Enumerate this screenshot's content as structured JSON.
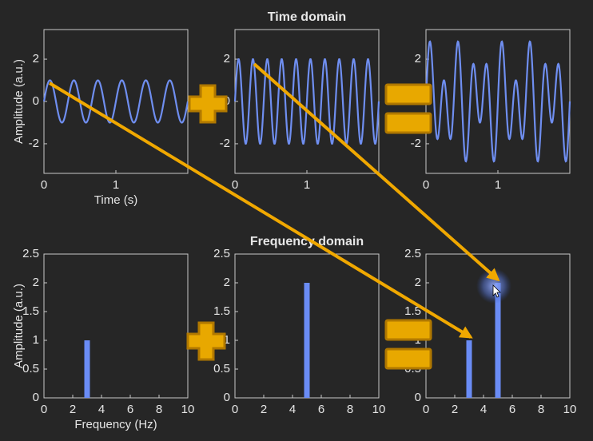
{
  "chart_data": [
    {
      "type": "sine",
      "ylabel": "Amplitude (a.u.)",
      "xlabel": "Time (s)",
      "components": [
        {
          "amplitude": 1,
          "frequency": 3
        }
      ],
      "color": "#6f8ef0",
      "xlim": [
        0,
        2
      ],
      "xticks": [
        0,
        1
      ],
      "ylim": [
        -3.4,
        3.4
      ],
      "yticks": [
        -2,
        0,
        2
      ]
    },
    {
      "type": "sine",
      "title": "Time domain",
      "components": [
        {
          "amplitude": 2,
          "frequency": 5
        }
      ],
      "color": "#6f8ef0",
      "xlim": [
        0,
        2
      ],
      "xticks": [
        0,
        1
      ],
      "ylim": [
        -3.4,
        3.4
      ],
      "yticks": [
        -2,
        0,
        2
      ]
    },
    {
      "type": "sine",
      "components": [
        {
          "amplitude": 1,
          "frequency": 3
        },
        {
          "amplitude": 2,
          "frequency": 5
        }
      ],
      "color": "#6f8ef0",
      "xlim": [
        0,
        2
      ],
      "xticks": [
        0,
        1
      ],
      "ylim": [
        -3.4,
        3.4
      ],
      "yticks": [
        -2,
        0,
        2
      ]
    },
    {
      "type": "bar",
      "ylabel": "Amplitude (a.u.)",
      "xlabel": "Frequency (Hz)",
      "x": [
        3
      ],
      "values": [
        1
      ],
      "color": "#6a8cf5",
      "xlim": [
        0,
        10
      ],
      "xticks": [
        0,
        2,
        4,
        6,
        8,
        10
      ],
      "ylim": [
        0,
        2.5
      ],
      "yticks": [
        0,
        0.5,
        1,
        1.5,
        2,
        2.5
      ]
    },
    {
      "type": "bar",
      "title": "Frequency domain",
      "x": [
        5
      ],
      "values": [
        2
      ],
      "color": "#6a8cf5",
      "xlim": [
        0,
        10
      ],
      "xticks": [
        0,
        2,
        4,
        6,
        8,
        10
      ],
      "ylim": [
        0,
        2.5
      ],
      "yticks": [
        0,
        0.5,
        1,
        1.5,
        2,
        2.5
      ]
    },
    {
      "type": "bar",
      "x": [
        3,
        5
      ],
      "values": [
        1,
        2
      ],
      "color": "#6a8cf5",
      "xlim": [
        0,
        10
      ],
      "xticks": [
        0,
        2,
        4,
        6,
        8,
        10
      ],
      "ylim": [
        0,
        2.5
      ],
      "yticks": [
        0,
        0.5,
        1,
        1.5,
        2,
        2.5
      ]
    }
  ]
}
